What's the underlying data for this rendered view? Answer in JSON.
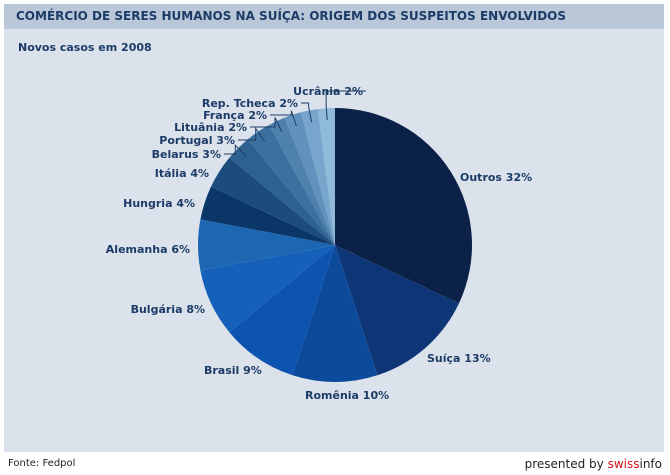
{
  "title": "COMÉRCIO DE SERES HUMANOS NA SUÍÇA: ORIGEM DOS SUSPEITOS ENVOLVIDOS",
  "subtitle": "Novos casos em 2008",
  "source": "Fonte: Fedpol",
  "brand": {
    "prefix": "presented by ",
    "name_red": "swiss",
    "name_rest": "info"
  },
  "chart_data": {
    "type": "pie",
    "title": "COMÉRCIO DE SERES HUMANOS NA SUÍÇA: ORIGEM DOS SUSPEITOS ENVOLVIDOS",
    "subtitle": "Novos casos em 2008",
    "unit": "%",
    "slices": [
      {
        "label": "Outros 32%",
        "value": 32,
        "color": "#0b2148"
      },
      {
        "label": "Suíça 13%",
        "value": 13,
        "color": "#0e3575"
      },
      {
        "label": "Romênia 10%",
        "value": 10,
        "color": "#0c4a9c"
      },
      {
        "label": "Brasil 9%",
        "value": 9,
        "color": "#0d54b0"
      },
      {
        "label": "Bulgária 8%",
        "value": 8,
        "color": "#1560b8"
      },
      {
        "label": "Alemanha 6%",
        "value": 6,
        "color": "#1d66b2"
      },
      {
        "label": "Hungria 4%",
        "value": 4,
        "color": "#0b3768"
      },
      {
        "label": "Itália 4%",
        "value": 4,
        "color": "#1b4c7c"
      },
      {
        "label": "Belarus 3%",
        "value": 3,
        "color": "#2d6190"
      },
      {
        "label": "Portugal 3%",
        "value": 3,
        "color": "#3c709e"
      },
      {
        "label": "Lituânia 2%",
        "value": 2,
        "color": "#4e81ae"
      },
      {
        "label": "França 2%",
        "value": 2,
        "color": "#6191bd"
      },
      {
        "label": "Rep. Tcheca 2%",
        "value": 2,
        "color": "#77a5cb"
      },
      {
        "label": "Ucrânia 2%",
        "value": 2,
        "color": "#8fbad9"
      }
    ]
  }
}
